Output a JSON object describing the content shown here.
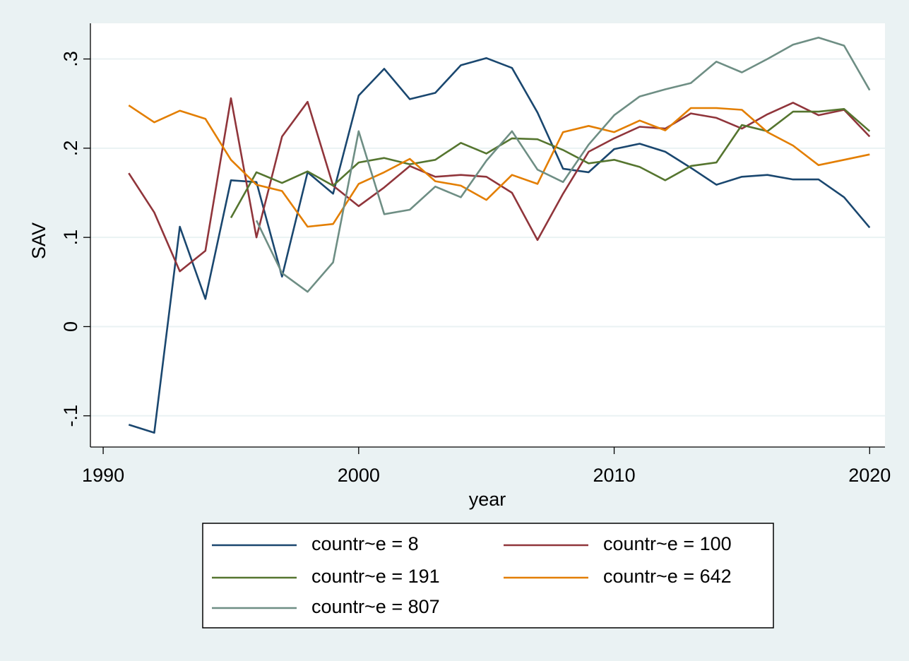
{
  "chart_data": {
    "type": "line",
    "title": "",
    "xlabel": "year",
    "ylabel": "SAV",
    "xlim": [
      1989.5,
      2020.6
    ],
    "ylim": [
      -0.135,
      0.34
    ],
    "x_ticks": [
      1990,
      2000,
      2010,
      2020
    ],
    "x_tick_labels": [
      "1990",
      "2000",
      "2010",
      "2020"
    ],
    "y_ticks": [
      -0.1,
      0,
      0.1,
      0.2,
      0.3
    ],
    "y_tick_labels": [
      "-.1",
      "0",
      ".1",
      ".2",
      ".3"
    ],
    "grid": "horizontal",
    "legend_position": "bottom",
    "series": [
      {
        "name": "countr~e = 8",
        "color": "#1a476f",
        "x": [
          1991,
          1992,
          1993,
          1994,
          1995,
          1996,
          1997,
          1998,
          1999,
          2000,
          2001,
          2002,
          2003,
          2004,
          2005,
          2006,
          2007,
          2008,
          2009,
          2010,
          2011,
          2012,
          2013,
          2014,
          2015,
          2016,
          2017,
          2018,
          2019,
          2020
        ],
        "y": [
          -0.11,
          -0.119,
          0.112,
          0.031,
          0.164,
          0.162,
          0.056,
          0.173,
          0.149,
          0.259,
          0.289,
          0.255,
          0.262,
          0.293,
          0.301,
          0.29,
          0.24,
          0.177,
          0.173,
          0.199,
          0.205,
          0.196,
          0.178,
          0.159,
          0.168,
          0.17,
          0.165,
          0.165,
          0.145,
          0.111
        ]
      },
      {
        "name": "countr~e = 100",
        "color": "#90353b",
        "x": [
          1991,
          1992,
          1993,
          1994,
          1995,
          1996,
          1997,
          1998,
          1999,
          2000,
          2001,
          2002,
          2003,
          2004,
          2005,
          2006,
          2007,
          2008,
          2009,
          2010,
          2011,
          2012,
          2013,
          2014,
          2015,
          2016,
          2017,
          2018,
          2019,
          2020
        ],
        "y": [
          0.172,
          0.128,
          0.062,
          0.085,
          0.256,
          0.1,
          0.213,
          0.252,
          0.158,
          0.135,
          0.156,
          0.18,
          0.168,
          0.17,
          0.168,
          0.15,
          0.097,
          0.149,
          0.196,
          0.211,
          0.224,
          0.222,
          0.239,
          0.234,
          0.222,
          0.238,
          0.251,
          0.237,
          0.243,
          0.213
        ]
      },
      {
        "name": "countr~e = 191",
        "color": "#55752f",
        "x": [
          1995,
          1996,
          1997,
          1998,
          1999,
          2000,
          2001,
          2002,
          2003,
          2004,
          2005,
          2006,
          2007,
          2008,
          2009,
          2010,
          2011,
          2012,
          2013,
          2014,
          2015,
          2016,
          2017,
          2018,
          2019,
          2020
        ],
        "y": [
          0.122,
          0.173,
          0.161,
          0.174,
          0.158,
          0.184,
          0.189,
          0.182,
          0.187,
          0.206,
          0.194,
          0.211,
          0.21,
          0.198,
          0.183,
          0.187,
          0.179,
          0.164,
          0.18,
          0.184,
          0.226,
          0.219,
          0.241,
          0.241,
          0.244,
          0.219
        ]
      },
      {
        "name": "countr~e = 642",
        "color": "#e37e00",
        "x": [
          1991,
          1992,
          1993,
          1994,
          1995,
          1996,
          1997,
          1998,
          1999,
          2000,
          2001,
          2002,
          2003,
          2004,
          2005,
          2006,
          2007,
          2008,
          2009,
          2010,
          2011,
          2012,
          2013,
          2014,
          2015,
          2016,
          2017,
          2018,
          2019,
          2020
        ],
        "y": [
          0.248,
          0.229,
          0.242,
          0.233,
          0.187,
          0.159,
          0.152,
          0.112,
          0.115,
          0.16,
          0.173,
          0.188,
          0.163,
          0.158,
          0.142,
          0.17,
          0.16,
          0.218,
          0.225,
          0.218,
          0.231,
          0.22,
          0.245,
          0.245,
          0.243,
          0.218,
          0.203,
          0.181,
          0.187,
          0.193
        ]
      },
      {
        "name": "countr~e = 807",
        "color": "#6e8e84",
        "x": [
          1996,
          1997,
          1998,
          1999,
          2000,
          2001,
          2002,
          2003,
          2004,
          2005,
          2006,
          2007,
          2008,
          2009,
          2010,
          2011,
          2012,
          2013,
          2014,
          2015,
          2016,
          2017,
          2018,
          2019,
          2020
        ],
        "y": [
          0.119,
          0.06,
          0.039,
          0.072,
          0.219,
          0.126,
          0.131,
          0.157,
          0.145,
          0.186,
          0.219,
          0.176,
          0.162,
          0.204,
          0.237,
          0.258,
          0.266,
          0.273,
          0.297,
          0.285,
          0.3,
          0.316,
          0.324,
          0.315,
          0.265
        ]
      }
    ]
  }
}
